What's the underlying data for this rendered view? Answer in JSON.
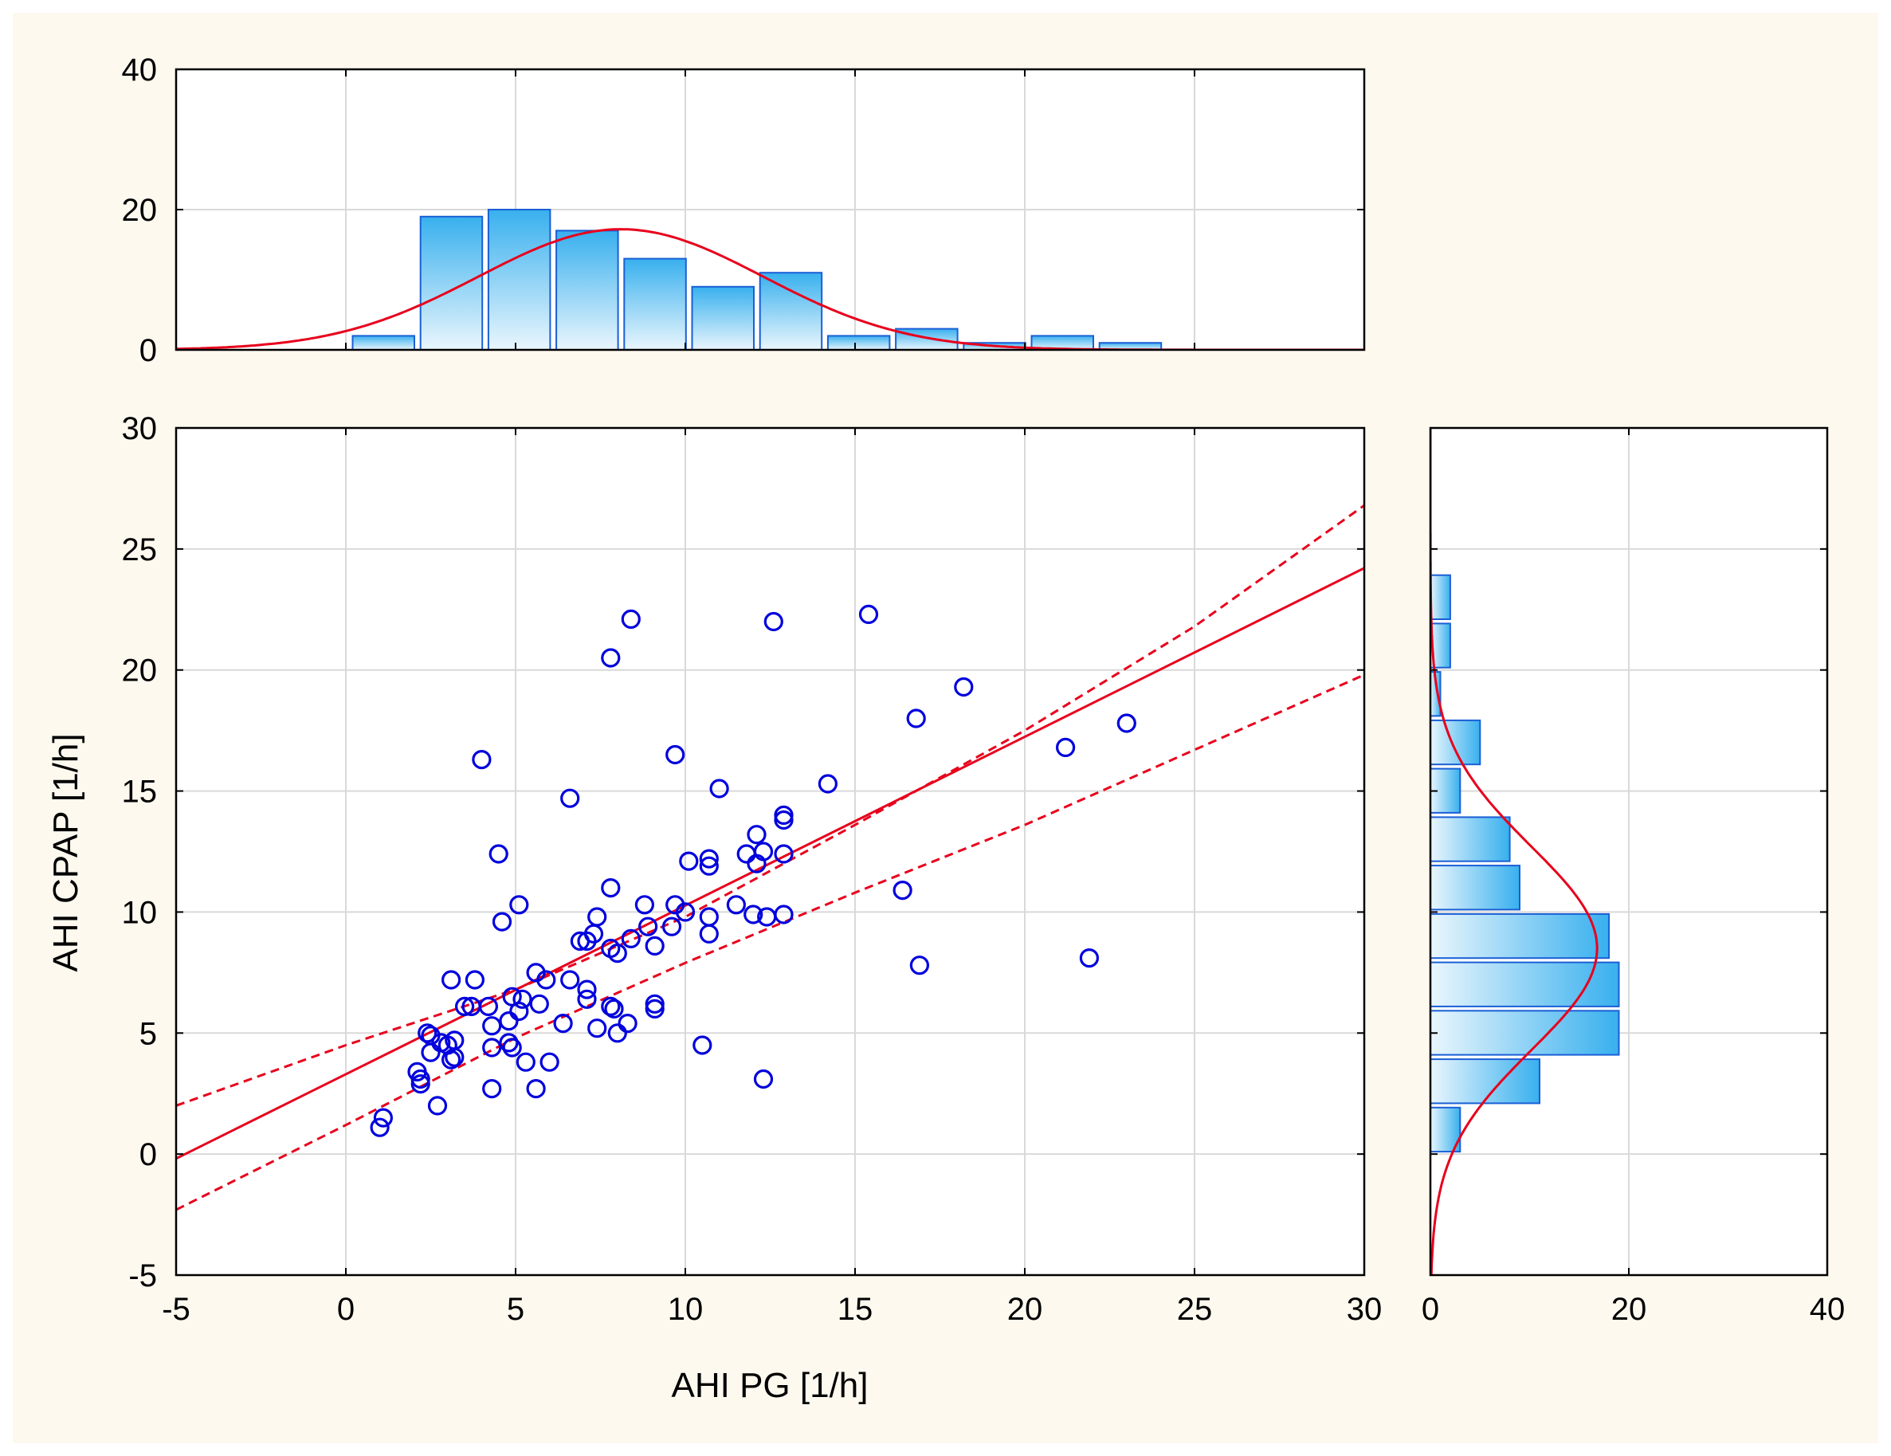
{
  "chart_data": {
    "type": "scatter",
    "title": "",
    "xlabel": "AHI PG [1/h]",
    "ylabel": "AHI CPAP [1/h]",
    "xlim": [
      -5,
      30
    ],
    "ylim": [
      -5,
      30
    ],
    "x_ticks": [
      "-5",
      "0",
      "5",
      "10",
      "15",
      "20",
      "25",
      "30"
    ],
    "y_ticks": [
      "-5",
      "0",
      "5",
      "10",
      "15",
      "20",
      "25",
      "30"
    ],
    "grid": true,
    "colors": {
      "points": "#0000dd",
      "fit": "#e8001c",
      "bar_edge": "#1a5fd6",
      "bar_fill_dark": "#38b0ee",
      "bar_fill_light": "#eaf6fd"
    },
    "points": [
      [
        1.0,
        1.1
      ],
      [
        1.1,
        1.5
      ],
      [
        2.1,
        3.4
      ],
      [
        2.2,
        3.1
      ],
      [
        2.2,
        2.9
      ],
      [
        2.4,
        5.0
      ],
      [
        2.5,
        4.9
      ],
      [
        2.5,
        4.2
      ],
      [
        2.7,
        2.0
      ],
      [
        2.8,
        4.6
      ],
      [
        3.0,
        4.5
      ],
      [
        3.1,
        3.9
      ],
      [
        3.1,
        7.2
      ],
      [
        3.2,
        4.7
      ],
      [
        3.2,
        4.0
      ],
      [
        3.5,
        6.1
      ],
      [
        3.7,
        6.1
      ],
      [
        3.8,
        7.2
      ],
      [
        4.0,
        16.3
      ],
      [
        4.2,
        6.1
      ],
      [
        4.3,
        5.3
      ],
      [
        4.3,
        2.7
      ],
      [
        4.3,
        4.4
      ],
      [
        4.5,
        12.4
      ],
      [
        4.6,
        9.6
      ],
      [
        4.8,
        5.5
      ],
      [
        4.8,
        4.6
      ],
      [
        4.9,
        4.4
      ],
      [
        4.9,
        6.5
      ],
      [
        5.1,
        10.3
      ],
      [
        5.1,
        5.9
      ],
      [
        5.2,
        6.4
      ],
      [
        5.3,
        3.8
      ],
      [
        5.6,
        7.5
      ],
      [
        5.6,
        2.7
      ],
      [
        5.7,
        6.2
      ],
      [
        5.9,
        7.2
      ],
      [
        6.0,
        3.8
      ],
      [
        6.4,
        5.4
      ],
      [
        6.6,
        14.7
      ],
      [
        6.6,
        7.2
      ],
      [
        6.9,
        8.8
      ],
      [
        7.1,
        8.8
      ],
      [
        7.1,
        6.8
      ],
      [
        7.1,
        6.4
      ],
      [
        7.3,
        9.1
      ],
      [
        7.4,
        9.8
      ],
      [
        7.4,
        5.2
      ],
      [
        7.8,
        20.5
      ],
      [
        7.8,
        6.1
      ],
      [
        7.8,
        8.5
      ],
      [
        7.8,
        11.0
      ],
      [
        7.9,
        6.0
      ],
      [
        8.0,
        8.3
      ],
      [
        8.0,
        5.0
      ],
      [
        8.3,
        5.4
      ],
      [
        8.4,
        22.1
      ],
      [
        8.4,
        8.9
      ],
      [
        8.8,
        10.3
      ],
      [
        8.9,
        9.4
      ],
      [
        9.1,
        8.6
      ],
      [
        9.1,
        6.2
      ],
      [
        9.1,
        6.0
      ],
      [
        9.6,
        9.4
      ],
      [
        9.7,
        16.5
      ],
      [
        9.7,
        10.3
      ],
      [
        10.0,
        10.0
      ],
      [
        10.1,
        12.1
      ],
      [
        10.5,
        4.5
      ],
      [
        10.7,
        12.2
      ],
      [
        10.7,
        11.9
      ],
      [
        10.7,
        9.8
      ],
      [
        10.7,
        9.1
      ],
      [
        11.0,
        15.1
      ],
      [
        11.5,
        10.3
      ],
      [
        11.8,
        12.4
      ],
      [
        12.0,
        9.9
      ],
      [
        12.1,
        13.2
      ],
      [
        12.1,
        12.0
      ],
      [
        12.3,
        12.5
      ],
      [
        12.4,
        9.8
      ],
      [
        12.3,
        3.1
      ],
      [
        12.6,
        22.0
      ],
      [
        12.9,
        13.8
      ],
      [
        12.9,
        14.0
      ],
      [
        12.9,
        12.4
      ],
      [
        12.9,
        9.9
      ],
      [
        14.2,
        15.3
      ],
      [
        15.4,
        22.3
      ],
      [
        16.4,
        10.9
      ],
      [
        16.8,
        18.0
      ],
      [
        16.9,
        7.8
      ],
      [
        18.2,
        19.3
      ],
      [
        21.2,
        16.8
      ],
      [
        21.9,
        8.1
      ],
      [
        23.0,
        17.8
      ]
    ],
    "fit_line": {
      "slope": 0.697,
      "intercept": 3.3
    },
    "confidence_band": {
      "x": [
        -5,
        0,
        5,
        10,
        15,
        20,
        25,
        30
      ],
      "lower": [
        -2.3,
        1.2,
        4.8,
        7.9,
        10.8,
        13.6,
        16.7,
        19.8
      ],
      "upper": [
        2.0,
        4.5,
        6.8,
        9.8,
        13.6,
        17.5,
        21.8,
        26.8
      ]
    },
    "x_histogram": {
      "axis_ticks": [
        "0",
        "20",
        "40"
      ],
      "ylim": [
        0,
        40
      ],
      "bin_width": 2,
      "bins": [
        {
          "start": 0.2,
          "count": 2
        },
        {
          "start": 2.2,
          "count": 19
        },
        {
          "start": 4.2,
          "count": 20
        },
        {
          "start": 6.2,
          "count": 17
        },
        {
          "start": 8.2,
          "count": 13
        },
        {
          "start": 10.2,
          "count": 9
        },
        {
          "start": 12.2,
          "count": 11
        },
        {
          "start": 14.2,
          "count": 2
        },
        {
          "start": 16.2,
          "count": 3
        },
        {
          "start": 18.2,
          "count": 1
        },
        {
          "start": 20.2,
          "count": 2
        },
        {
          "start": 22.2,
          "count": 1
        }
      ],
      "normal_curve": {
        "mean": 8.1,
        "sd": 4.2,
        "peak": 17.2
      }
    },
    "y_histogram": {
      "axis_ticks": [
        "0",
        "20",
        "40"
      ],
      "xlim": [
        0,
        40
      ],
      "bin_width": 2,
      "bins": [
        {
          "start": 0.1,
          "count": 3
        },
        {
          "start": 2.1,
          "count": 11
        },
        {
          "start": 4.1,
          "count": 19
        },
        {
          "start": 6.1,
          "count": 19
        },
        {
          "start": 8.1,
          "count": 18
        },
        {
          "start": 10.1,
          "count": 9
        },
        {
          "start": 12.1,
          "count": 8
        },
        {
          "start": 14.1,
          "count": 3
        },
        {
          "start": 16.1,
          "count": 5
        },
        {
          "start": 18.1,
          "count": 1
        },
        {
          "start": 20.1,
          "count": 2
        },
        {
          "start": 22.1,
          "count": 2
        }
      ],
      "normal_curve": {
        "mean": 8.5,
        "sd": 4.2,
        "peak": 16.8
      }
    }
  }
}
